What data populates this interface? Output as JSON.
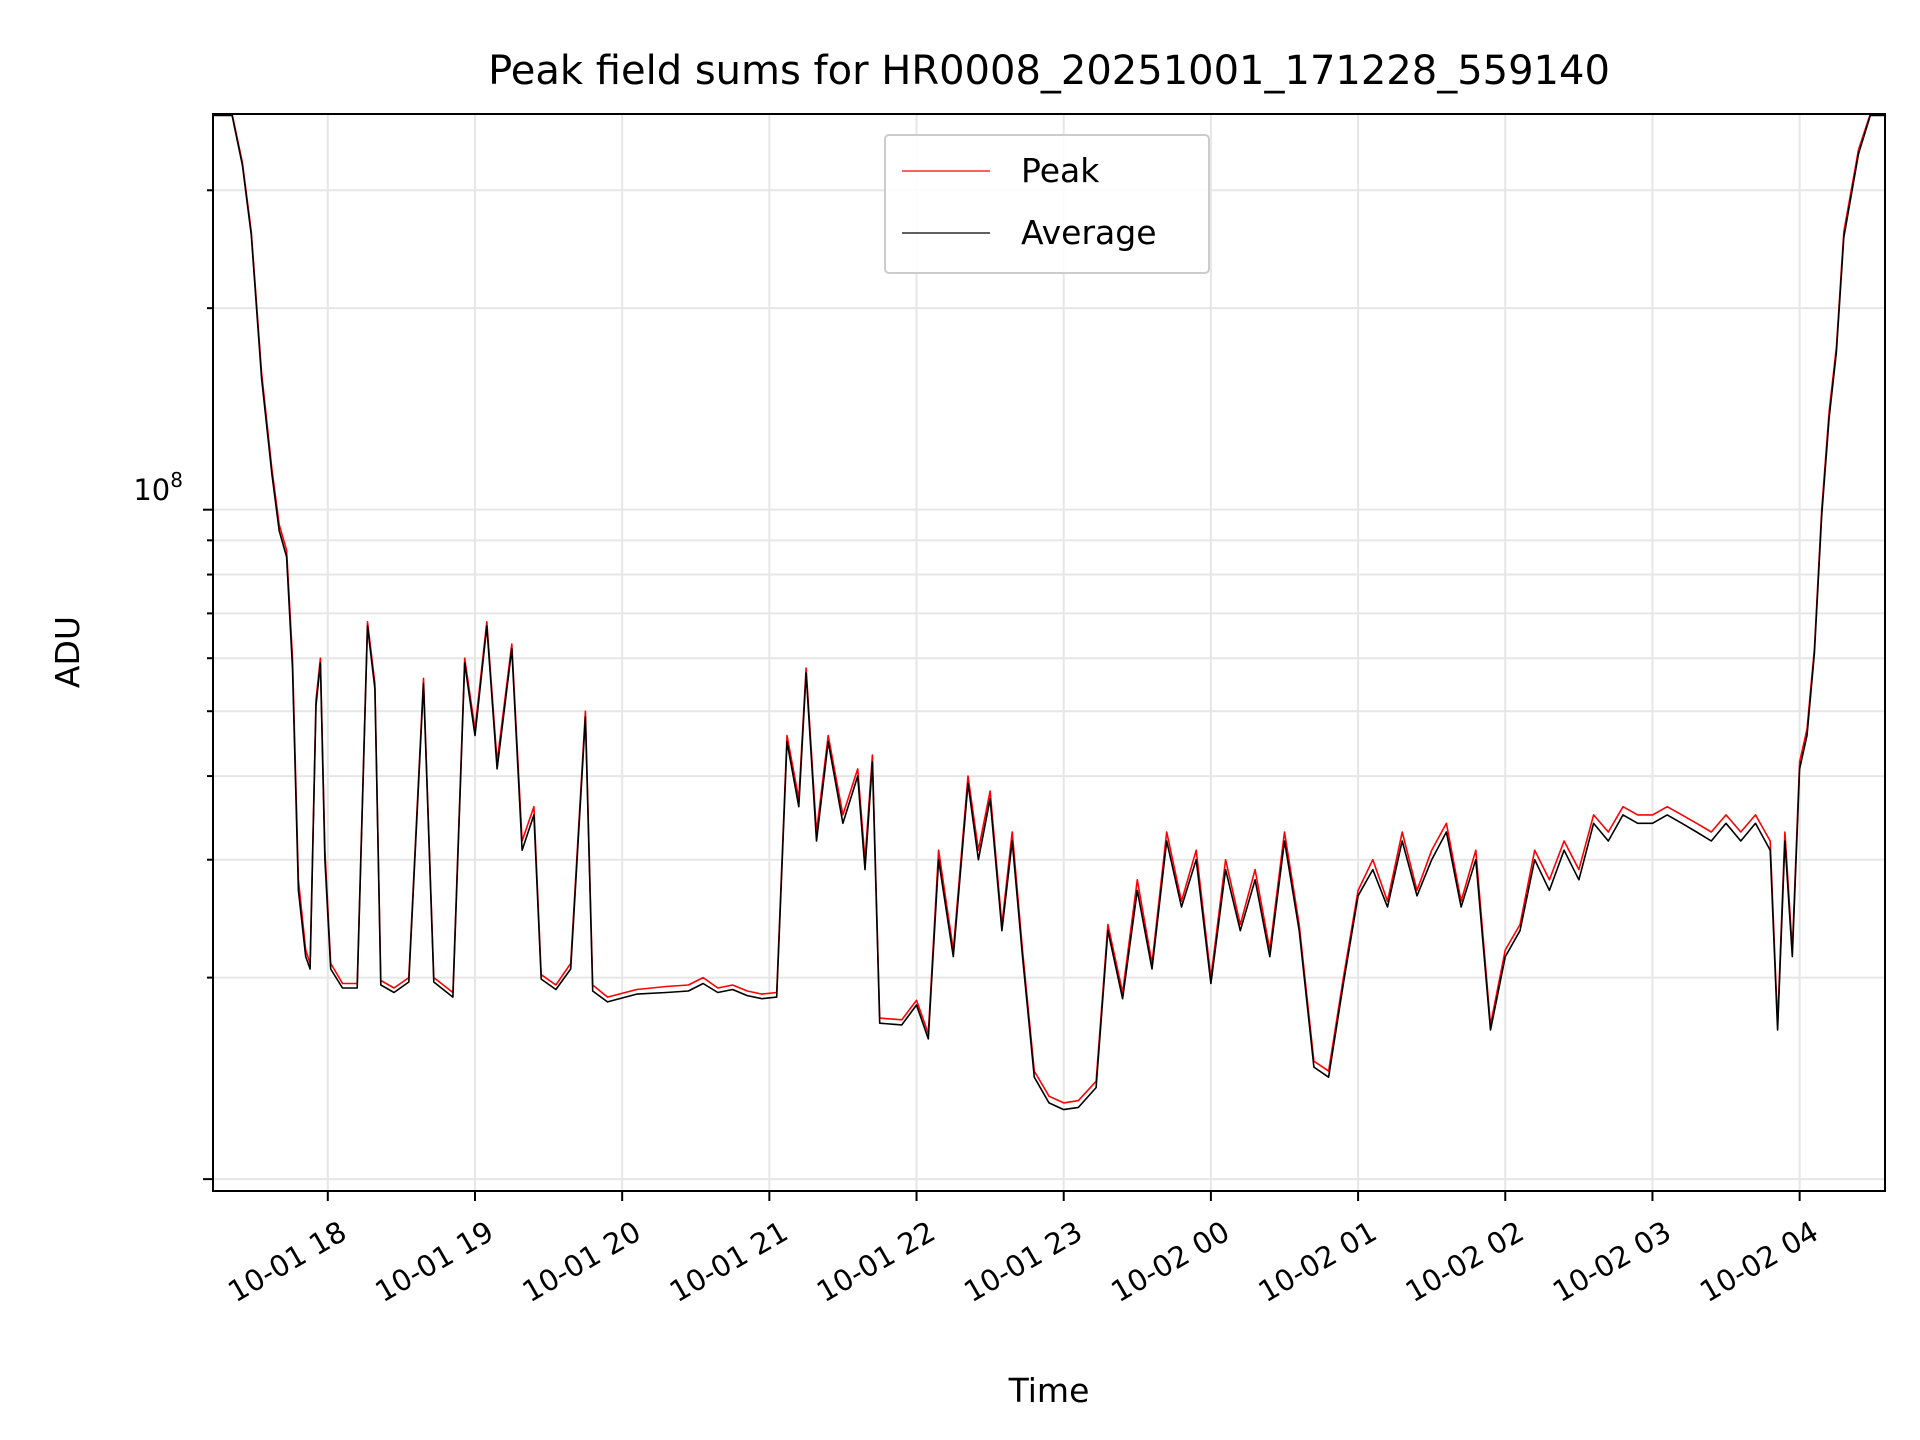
{
  "chart_data": {
    "type": "line",
    "title": "Peak field sums for HR0008_20251001_171228_559140",
    "xlabel": "Time",
    "ylabel": "ADU",
    "yscale": "log",
    "y_major_tick_label": "10",
    "y_major_tick_exponent": "8",
    "y_major_tick_value": 100000000,
    "ylim": [
      9600000,
      390000000
    ],
    "x_tick_labels": [
      "10-01 18",
      "10-01 19",
      "10-01 20",
      "10-01 21",
      "10-01 22",
      "10-01 23",
      "10-02 00",
      "10-02 01",
      "10-02 02",
      "10-02 03",
      "10-02 04"
    ],
    "x_tick_hours": [
      18,
      19,
      20,
      21,
      22,
      23,
      24,
      25,
      26,
      27,
      28
    ],
    "xlim_hours": [
      17.22,
      28.58
    ],
    "grid": true,
    "legend_position": "upper center",
    "series": [
      {
        "name": "Peak",
        "color": "#ff0000",
        "points": [
          [
            17.22,
            390000000
          ],
          [
            17.35,
            390000000
          ],
          [
            17.42,
            330000000
          ],
          [
            17.48,
            260000000
          ],
          [
            17.55,
            160000000
          ],
          [
            17.62,
            115000000
          ],
          [
            17.67,
            95000000
          ],
          [
            17.72,
            87000000
          ],
          [
            17.76,
            60000000
          ],
          [
            17.8,
            28000000
          ],
          [
            17.85,
            22000000
          ],
          [
            17.88,
            21000000
          ],
          [
            17.92,
            52000000
          ],
          [
            17.95,
            60000000
          ],
          [
            17.98,
            31000000
          ],
          [
            18.02,
            21000000
          ],
          [
            18.1,
            19600000
          ],
          [
            18.2,
            19600000
          ],
          [
            18.27,
            68000000
          ],
          [
            18.32,
            55000000
          ],
          [
            18.36,
            19800000
          ],
          [
            18.45,
            19300000
          ],
          [
            18.55,
            20000000
          ],
          [
            18.65,
            56000000
          ],
          [
            18.72,
            20000000
          ],
          [
            18.85,
            19000000
          ],
          [
            18.93,
            60000000
          ],
          [
            19.0,
            47000000
          ],
          [
            19.08,
            68000000
          ],
          [
            19.15,
            42000000
          ],
          [
            19.25,
            63000000
          ],
          [
            19.32,
            32000000
          ],
          [
            19.4,
            36000000
          ],
          [
            19.45,
            20200000
          ],
          [
            19.55,
            19500000
          ],
          [
            19.65,
            21000000
          ],
          [
            19.75,
            50000000
          ],
          [
            19.8,
            19500000
          ],
          [
            19.9,
            18700000
          ],
          [
            20.1,
            19200000
          ],
          [
            20.3,
            19400000
          ],
          [
            20.45,
            19500000
          ],
          [
            20.55,
            20000000
          ],
          [
            20.65,
            19300000
          ],
          [
            20.75,
            19500000
          ],
          [
            20.85,
            19100000
          ],
          [
            20.95,
            18900000
          ],
          [
            21.05,
            19000000
          ],
          [
            21.12,
            46000000
          ],
          [
            21.2,
            37000000
          ],
          [
            21.25,
            58000000
          ],
          [
            21.32,
            33000000
          ],
          [
            21.4,
            46000000
          ],
          [
            21.5,
            35000000
          ],
          [
            21.6,
            41000000
          ],
          [
            21.65,
            30000000
          ],
          [
            21.7,
            43000000
          ],
          [
            21.75,
            17400000
          ],
          [
            21.9,
            17300000
          ],
          [
            22.0,
            18500000
          ],
          [
            22.08,
            16500000
          ],
          [
            22.15,
            31000000
          ],
          [
            22.25,
            22000000
          ],
          [
            22.35,
            40000000
          ],
          [
            22.42,
            31000000
          ],
          [
            22.5,
            38000000
          ],
          [
            22.58,
            24000000
          ],
          [
            22.65,
            33000000
          ],
          [
            22.72,
            22000000
          ],
          [
            22.8,
            14500000
          ],
          [
            22.9,
            13300000
          ],
          [
            23.0,
            13000000
          ],
          [
            23.1,
            13100000
          ],
          [
            23.22,
            14000000
          ],
          [
            23.3,
            24000000
          ],
          [
            23.4,
            19000000
          ],
          [
            23.5,
            28000000
          ],
          [
            23.6,
            21000000
          ],
          [
            23.7,
            33000000
          ],
          [
            23.8,
            26000000
          ],
          [
            23.9,
            31000000
          ],
          [
            24.0,
            20000000
          ],
          [
            24.1,
            30000000
          ],
          [
            24.2,
            24000000
          ],
          [
            24.3,
            29000000
          ],
          [
            24.4,
            22000000
          ],
          [
            24.5,
            33000000
          ],
          [
            24.6,
            24000000
          ],
          [
            24.7,
            15000000
          ],
          [
            24.8,
            14500000
          ],
          [
            24.9,
            20000000
          ],
          [
            25.0,
            27000000
          ],
          [
            25.1,
            30000000
          ],
          [
            25.2,
            26000000
          ],
          [
            25.3,
            33000000
          ],
          [
            25.4,
            27000000
          ],
          [
            25.5,
            31000000
          ],
          [
            25.6,
            34000000
          ],
          [
            25.7,
            26000000
          ],
          [
            25.8,
            31000000
          ],
          [
            25.9,
            17000000
          ],
          [
            26.0,
            22000000
          ],
          [
            26.1,
            24000000
          ],
          [
            26.2,
            31000000
          ],
          [
            26.3,
            28000000
          ],
          [
            26.4,
            32000000
          ],
          [
            26.5,
            29000000
          ],
          [
            26.6,
            35000000
          ],
          [
            26.7,
            33000000
          ],
          [
            26.8,
            36000000
          ],
          [
            26.9,
            35000000
          ],
          [
            27.0,
            35000000
          ],
          [
            27.1,
            36000000
          ],
          [
            27.2,
            35000000
          ],
          [
            27.3,
            34000000
          ],
          [
            27.4,
            33000000
          ],
          [
            27.5,
            35000000
          ],
          [
            27.6,
            33000000
          ],
          [
            27.7,
            35000000
          ],
          [
            27.8,
            32000000
          ],
          [
            27.85,
            17000000
          ],
          [
            27.9,
            33000000
          ],
          [
            27.95,
            22000000
          ],
          [
            28.0,
            42000000
          ],
          [
            28.05,
            47000000
          ],
          [
            28.1,
            62000000
          ],
          [
            28.15,
            100000000
          ],
          [
            28.2,
            140000000
          ],
          [
            28.25,
            175000000
          ],
          [
            28.3,
            260000000
          ],
          [
            28.4,
            345000000
          ],
          [
            28.48,
            390000000
          ],
          [
            28.58,
            390000000
          ]
        ]
      },
      {
        "name": "Average",
        "color": "#000000",
        "points": [
          [
            17.22,
            388000000
          ],
          [
            17.35,
            388000000
          ],
          [
            17.42,
            327000000
          ],
          [
            17.48,
            257000000
          ],
          [
            17.55,
            157000000
          ],
          [
            17.62,
            113000000
          ],
          [
            17.67,
            93000000
          ],
          [
            17.72,
            85000000
          ],
          [
            17.76,
            58000000
          ],
          [
            17.8,
            27000000
          ],
          [
            17.85,
            21500000
          ],
          [
            17.88,
            20600000
          ],
          [
            17.92,
            51000000
          ],
          [
            17.95,
            59000000
          ],
          [
            17.98,
            30000000
          ],
          [
            18.02,
            20600000
          ],
          [
            18.1,
            19300000
          ],
          [
            18.2,
            19300000
          ],
          [
            18.27,
            67000000
          ],
          [
            18.32,
            54000000
          ],
          [
            18.36,
            19500000
          ],
          [
            18.45,
            19000000
          ],
          [
            18.55,
            19700000
          ],
          [
            18.65,
            55000000
          ],
          [
            18.72,
            19700000
          ],
          [
            18.85,
            18700000
          ],
          [
            18.93,
            59000000
          ],
          [
            19.0,
            46000000
          ],
          [
            19.08,
            67000000
          ],
          [
            19.15,
            41000000
          ],
          [
            19.25,
            62000000
          ],
          [
            19.32,
            31000000
          ],
          [
            19.4,
            35000000
          ],
          [
            19.45,
            19900000
          ],
          [
            19.55,
            19200000
          ],
          [
            19.65,
            20600000
          ],
          [
            19.75,
            49000000
          ],
          [
            19.8,
            19100000
          ],
          [
            19.9,
            18400000
          ],
          [
            20.1,
            18900000
          ],
          [
            20.3,
            19000000
          ],
          [
            20.45,
            19100000
          ],
          [
            20.55,
            19600000
          ],
          [
            20.65,
            19000000
          ],
          [
            20.75,
            19200000
          ],
          [
            20.85,
            18800000
          ],
          [
            20.95,
            18600000
          ],
          [
            21.05,
            18700000
          ],
          [
            21.12,
            45000000
          ],
          [
            21.2,
            36000000
          ],
          [
            21.25,
            57000000
          ],
          [
            21.32,
            32000000
          ],
          [
            21.4,
            45000000
          ],
          [
            21.5,
            34000000
          ],
          [
            21.6,
            40000000
          ],
          [
            21.65,
            29000000
          ],
          [
            21.7,
            42000000
          ],
          [
            21.75,
            17100000
          ],
          [
            21.9,
            17000000
          ],
          [
            22.0,
            18200000
          ],
          [
            22.08,
            16200000
          ],
          [
            22.15,
            30000000
          ],
          [
            22.25,
            21500000
          ],
          [
            22.35,
            39000000
          ],
          [
            22.42,
            30000000
          ],
          [
            22.5,
            37000000
          ],
          [
            22.58,
            23500000
          ],
          [
            22.65,
            32000000
          ],
          [
            22.72,
            21500000
          ],
          [
            22.8,
            14200000
          ],
          [
            22.9,
            13000000
          ],
          [
            23.0,
            12700000
          ],
          [
            23.1,
            12800000
          ],
          [
            23.22,
            13700000
          ],
          [
            23.3,
            23500000
          ],
          [
            23.4,
            18600000
          ],
          [
            23.5,
            27000000
          ],
          [
            23.6,
            20600000
          ],
          [
            23.7,
            32000000
          ],
          [
            23.8,
            25500000
          ],
          [
            23.9,
            30000000
          ],
          [
            24.0,
            19600000
          ],
          [
            24.1,
            29000000
          ],
          [
            24.2,
            23500000
          ],
          [
            24.3,
            28000000
          ],
          [
            24.4,
            21500000
          ],
          [
            24.5,
            32000000
          ],
          [
            24.6,
            23500000
          ],
          [
            24.7,
            14700000
          ],
          [
            24.8,
            14200000
          ],
          [
            24.9,
            19600000
          ],
          [
            25.0,
            26500000
          ],
          [
            25.1,
            29000000
          ],
          [
            25.2,
            25500000
          ],
          [
            25.3,
            32000000
          ],
          [
            25.4,
            26500000
          ],
          [
            25.5,
            30000000
          ],
          [
            25.6,
            33000000
          ],
          [
            25.7,
            25500000
          ],
          [
            25.8,
            30000000
          ],
          [
            25.9,
            16700000
          ],
          [
            26.0,
            21500000
          ],
          [
            26.1,
            23500000
          ],
          [
            26.2,
            30000000
          ],
          [
            26.3,
            27000000
          ],
          [
            26.4,
            31000000
          ],
          [
            26.5,
            28000000
          ],
          [
            26.6,
            34000000
          ],
          [
            26.7,
            32000000
          ],
          [
            26.8,
            35000000
          ],
          [
            26.9,
            34000000
          ],
          [
            27.0,
            34000000
          ],
          [
            27.1,
            35000000
          ],
          [
            27.2,
            34000000
          ],
          [
            27.3,
            33000000
          ],
          [
            27.4,
            32000000
          ],
          [
            27.5,
            34000000
          ],
          [
            27.6,
            32000000
          ],
          [
            27.7,
            34000000
          ],
          [
            27.8,
            31000000
          ],
          [
            27.85,
            16700000
          ],
          [
            27.9,
            32000000
          ],
          [
            27.95,
            21500000
          ],
          [
            28.0,
            41000000
          ],
          [
            28.05,
            46000000
          ],
          [
            28.1,
            61000000
          ],
          [
            28.15,
            98000000
          ],
          [
            28.2,
            137000000
          ],
          [
            28.25,
            172000000
          ],
          [
            28.3,
            255000000
          ],
          [
            28.4,
            340000000
          ],
          [
            28.48,
            388000000
          ],
          [
            28.58,
            388000000
          ]
        ]
      }
    ]
  }
}
